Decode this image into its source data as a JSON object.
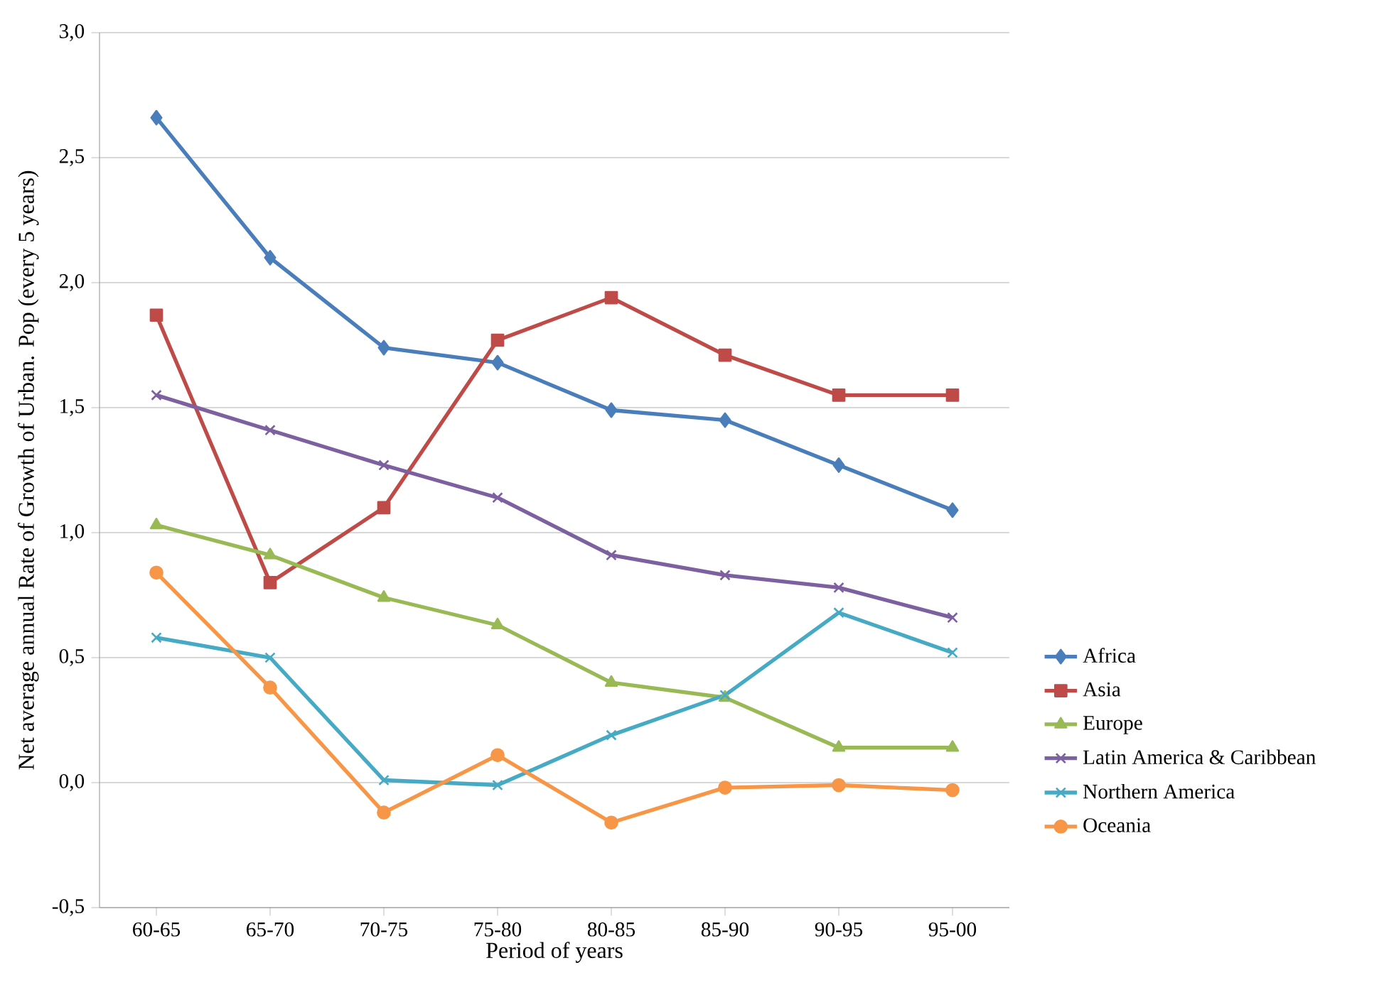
{
  "chart_data": {
    "type": "line",
    "xlabel": "Period of years",
    "ylabel": "Net average annual  Rate of Growth of Urban. Pop (every 5 years)",
    "categories": [
      "60-65",
      "65-70",
      "70-75",
      "75-80",
      "80-85",
      "85-90",
      "90-95",
      "95-00"
    ],
    "ylim": [
      -0.5,
      3.0
    ],
    "yticks": [
      {
        "value": -0.5,
        "label": "-0,5"
      },
      {
        "value": 0,
        "label": "0,0"
      },
      {
        "value": 0.5,
        "label": "0,5"
      },
      {
        "value": 1,
        "label": "1,0"
      },
      {
        "value": 1.5,
        "label": "1,5"
      },
      {
        "value": 2,
        "label": "2,0"
      },
      {
        "value": 2.5,
        "label": "2,5"
      },
      {
        "value": 3,
        "label": "3,0"
      }
    ],
    "grid": "y",
    "legend": "right",
    "line_style": "solid",
    "series": [
      {
        "name": "Africa",
        "color": "#4a7ebb",
        "marker": "diamond",
        "values": [
          2.66,
          2.1,
          1.74,
          1.68,
          1.49,
          1.45,
          1.27,
          1.09
        ]
      },
      {
        "name": "Asia",
        "color": "#be4b48",
        "marker": "square",
        "values": [
          1.87,
          0.8,
          1.1,
          1.77,
          1.94,
          1.71,
          1.55,
          1.55
        ]
      },
      {
        "name": "Europe",
        "color": "#98b954",
        "marker": "triangle",
        "values": [
          1.03,
          0.91,
          0.74,
          0.63,
          0.4,
          0.34,
          0.14,
          0.14
        ]
      },
      {
        "name": "Latin America & Caribbean",
        "color": "#7d60a0",
        "marker": "cross",
        "values": [
          1.55,
          1.41,
          1.27,
          1.14,
          0.91,
          0.83,
          0.78,
          0.66
        ]
      },
      {
        "name": "Northern America",
        "color": "#46aac5",
        "marker": "cross",
        "values": [
          0.58,
          0.5,
          0.01,
          -0.01,
          0.19,
          0.35,
          0.68,
          0.52
        ]
      },
      {
        "name": "Oceania",
        "color": "#f79646",
        "marker": "circle",
        "values": [
          0.84,
          0.38,
          -0.12,
          0.11,
          -0.16,
          -0.02,
          -0.01,
          -0.03
        ]
      }
    ]
  }
}
